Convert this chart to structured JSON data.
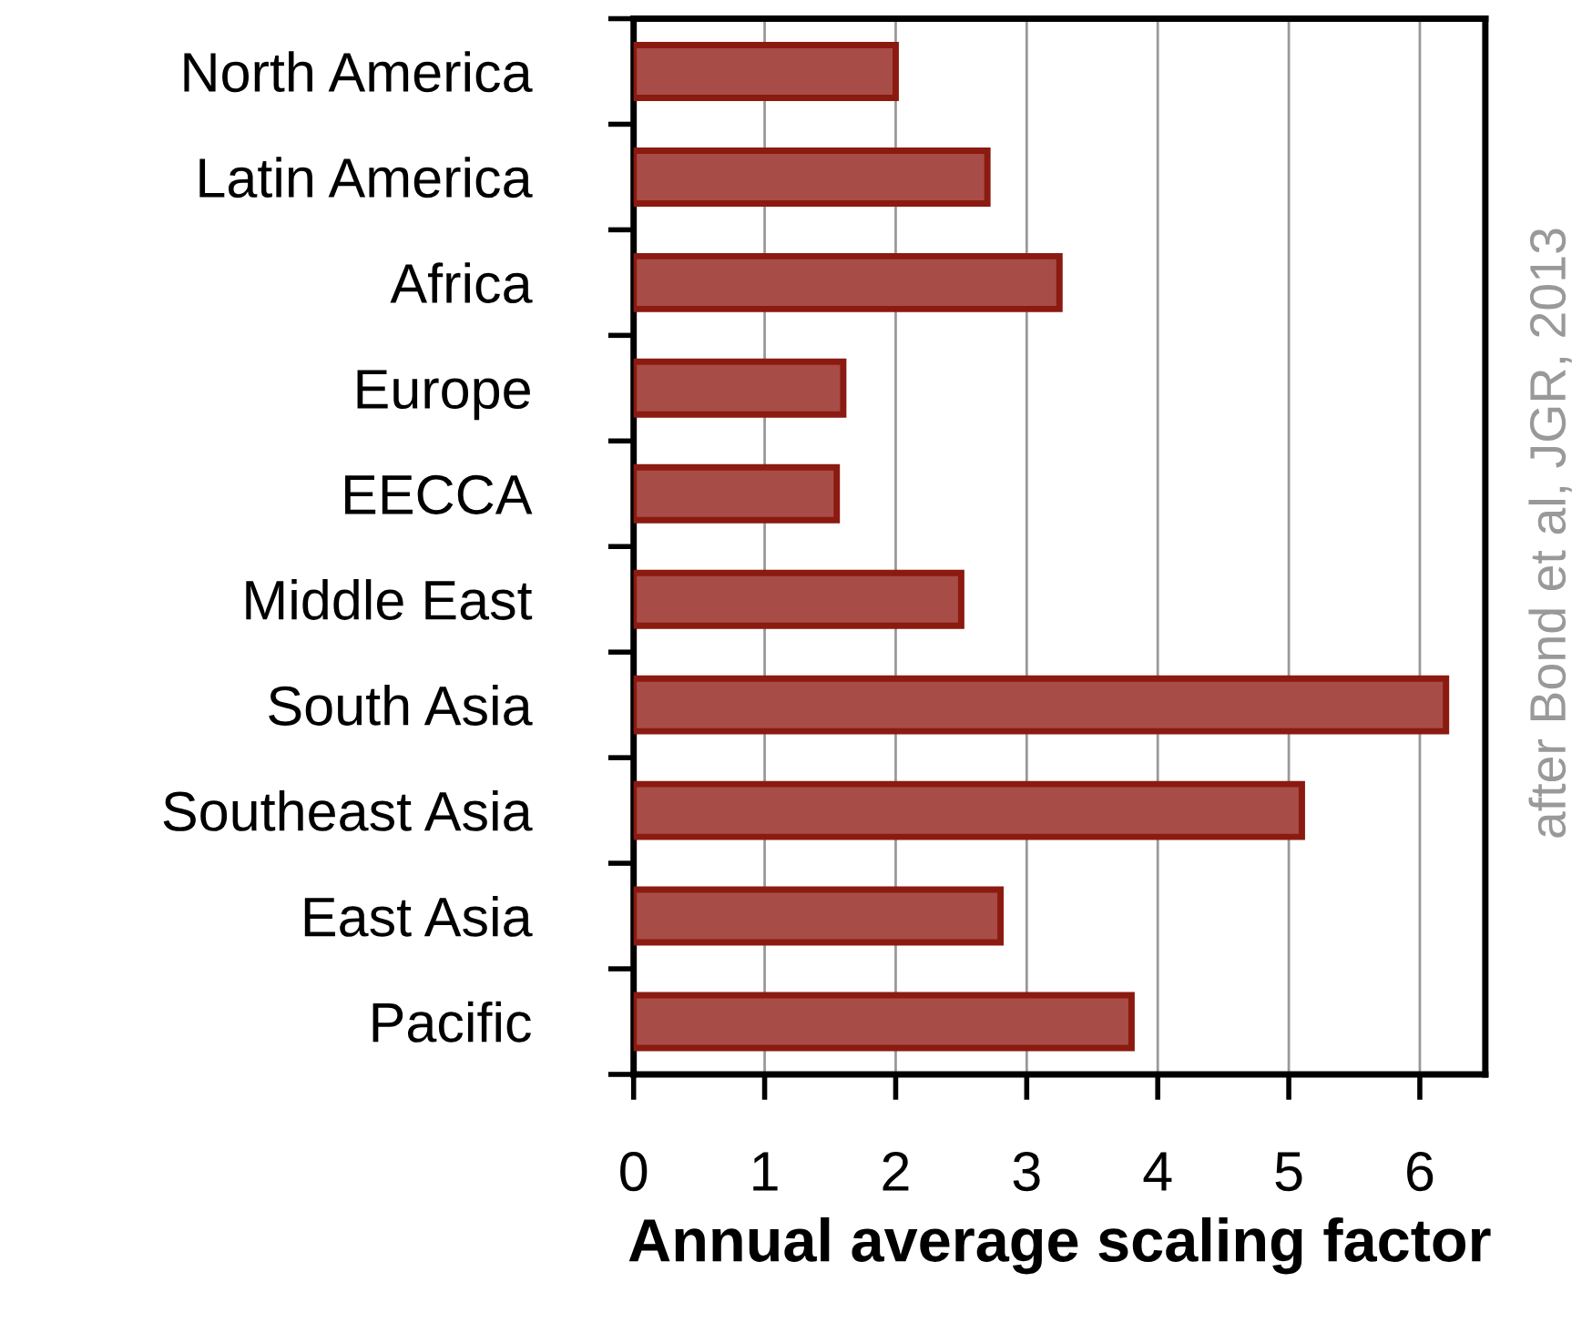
{
  "chart_data": {
    "type": "bar",
    "orientation": "horizontal",
    "xlabel": "Annual average scaling factor",
    "categories": [
      "North America",
      "Latin America",
      "Africa",
      "Europe",
      "EECCA",
      "Middle East",
      "South Asia",
      "Southeast Asia",
      "East Asia",
      "Pacific"
    ],
    "values": [
      2.0,
      2.7,
      3.25,
      1.6,
      1.55,
      2.5,
      6.2,
      5.1,
      2.8,
      3.8
    ],
    "color": "#a84c47",
    "xlim": [
      0,
      6.5
    ],
    "xticks": [
      0,
      1,
      2,
      3,
      4,
      5,
      6
    ],
    "grid": "x",
    "annotations": [
      "after Bond et al, JGR, 2013"
    ]
  }
}
